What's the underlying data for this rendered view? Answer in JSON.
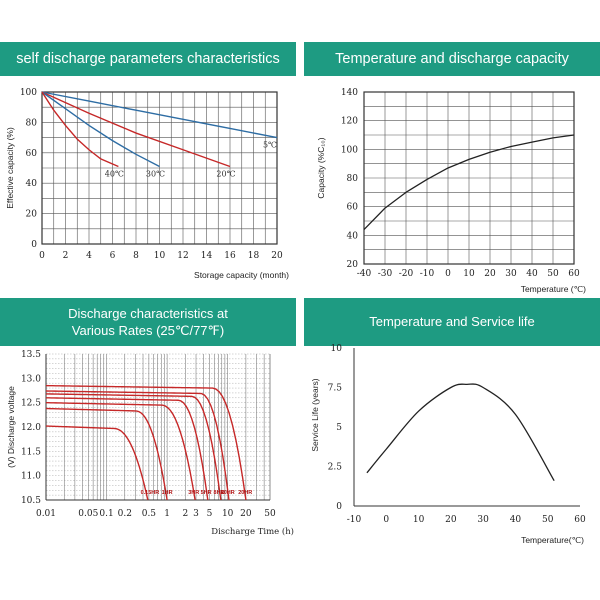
{
  "panels": {
    "p1_title": "self discharge parameters characteristics",
    "p2_title": "Temperature and discharge capacity",
    "p3_title_line1": "Discharge characteristics at",
    "p3_title_line2": "Various Rates (25℃/77℉)",
    "p4_title": "Temperature and Service life"
  },
  "chart_data": [
    {
      "type": "line",
      "title": "self discharge parameters characteristics",
      "xlabel": "Storage capacity (month)",
      "ylabel": "Effective capacity (%)",
      "xlim": [
        0,
        20
      ],
      "ylim": [
        0,
        100
      ],
      "x_ticks": [
        "0",
        "2",
        "4",
        "6",
        "8",
        "10",
        "12",
        "14",
        "16",
        "18",
        "20"
      ],
      "y_ticks": [
        "0",
        "20",
        "40",
        "60",
        "80",
        "100"
      ],
      "grid": true,
      "series": [
        {
          "name": "5℃",
          "color": "#2e6da4",
          "x": [
            0,
            4,
            8,
            12,
            16,
            20
          ],
          "y": [
            100,
            94,
            88,
            82,
            76,
            70
          ]
        },
        {
          "name": "20℃",
          "color": "#c62828",
          "x": [
            0,
            4,
            8,
            12,
            16
          ],
          "y": [
            100,
            86,
            73,
            62,
            51
          ]
        },
        {
          "name": "30℃",
          "color": "#2e6da4",
          "x": [
            0,
            2,
            4,
            6,
            8,
            10
          ],
          "y": [
            100,
            89,
            78,
            68,
            59,
            51
          ]
        },
        {
          "name": "40℃",
          "color": "#c62828",
          "x": [
            0,
            1,
            2,
            3,
            4,
            5,
            6.5
          ],
          "y": [
            100,
            88,
            78,
            69,
            62,
            56,
            51
          ]
        }
      ]
    },
    {
      "type": "line",
      "title": "Temperature and discharge capacity",
      "xlabel": "Temperature (℃)",
      "ylabel": "Capacity (%C₁₀)",
      "xlim": [
        -40,
        60
      ],
      "ylim": [
        20,
        140
      ],
      "x_ticks": [
        "-40",
        "-30",
        "-20",
        "-10",
        "0",
        "10",
        "20",
        "30",
        "40",
        "50",
        "60"
      ],
      "y_ticks": [
        "20",
        "40",
        "60",
        "80",
        "100",
        "120",
        "140"
      ],
      "grid": true,
      "series": [
        {
          "name": "",
          "color": "#222222",
          "x": [
            -40,
            -30,
            -20,
            -10,
            0,
            10,
            20,
            30,
            40,
            50,
            60
          ],
          "y": [
            44,
            59,
            70,
            79,
            87,
            93,
            98,
            102,
            105,
            108,
            110
          ]
        }
      ]
    },
    {
      "type": "line",
      "title": "Discharge characteristics at Various Rates (25℃/77℉)",
      "xlabel": "Discharge Time (h)",
      "ylabel": "(V) Discharge voltage",
      "xscale": "log",
      "xlim": [
        0.01,
        50
      ],
      "ylim": [
        10.5,
        13.5
      ],
      "x_ticks": [
        "0.01",
        "0.05",
        "0.1",
        "0.2",
        "0.5",
        "1",
        "2",
        "3",
        "5",
        "10",
        "20",
        "50"
      ],
      "y_ticks": [
        "10.5",
        "11.0",
        "11.5",
        "12.0",
        "12.5",
        "13.0",
        "13.5"
      ],
      "grid": true,
      "series": [
        {
          "name": "0.15HR",
          "color": "#c62828",
          "start": 12.02,
          "flat_end": 0.13,
          "end": 0.48,
          "label_x": 0.52
        },
        {
          "name": "1HR",
          "color": "#c62828",
          "start": 12.38,
          "flat_end": 0.3,
          "end": 1.0,
          "label_x": 1.0
        },
        {
          "name": "3HR",
          "color": "#c62828",
          "start": 12.5,
          "flat_end": 0.8,
          "end": 2.9,
          "label_x": 2.75
        },
        {
          "name": "5HR",
          "color": "#c62828",
          "start": 12.6,
          "flat_end": 1.5,
          "end": 4.7,
          "label_x": 4.4
        },
        {
          "name": "8HR",
          "color": "#c62828",
          "start": 12.68,
          "flat_end": 2.5,
          "end": 7.7,
          "label_x": 7.2
        },
        {
          "name": "10HR",
          "color": "#c62828",
          "start": 12.74,
          "flat_end": 3.5,
          "end": 10.5,
          "label_x": 10.0
        },
        {
          "name": "20HR",
          "color": "#c62828",
          "start": 12.85,
          "flat_end": 5.5,
          "end": 20.0,
          "label_x": 19.5
        }
      ]
    },
    {
      "type": "line",
      "title": "Temperature and Service life",
      "xlabel": "Temperature(℃)",
      "ylabel": "Service Life (years)",
      "xlim": [
        -10,
        60
      ],
      "ylim": [
        0,
        10
      ],
      "x_ticks": [
        "-10",
        "0",
        "10",
        "20",
        "30",
        "40",
        "50",
        "60"
      ],
      "y_ticks": [
        "0",
        "2.5",
        "5",
        "7.5",
        "10"
      ],
      "grid": false,
      "series": [
        {
          "name": "",
          "color": "#222222",
          "x": [
            -6,
            0,
            10,
            20,
            25,
            30,
            40,
            52
          ],
          "y": [
            2.1,
            3.6,
            6.0,
            7.5,
            7.7,
            7.5,
            5.8,
            1.6
          ]
        }
      ]
    }
  ]
}
